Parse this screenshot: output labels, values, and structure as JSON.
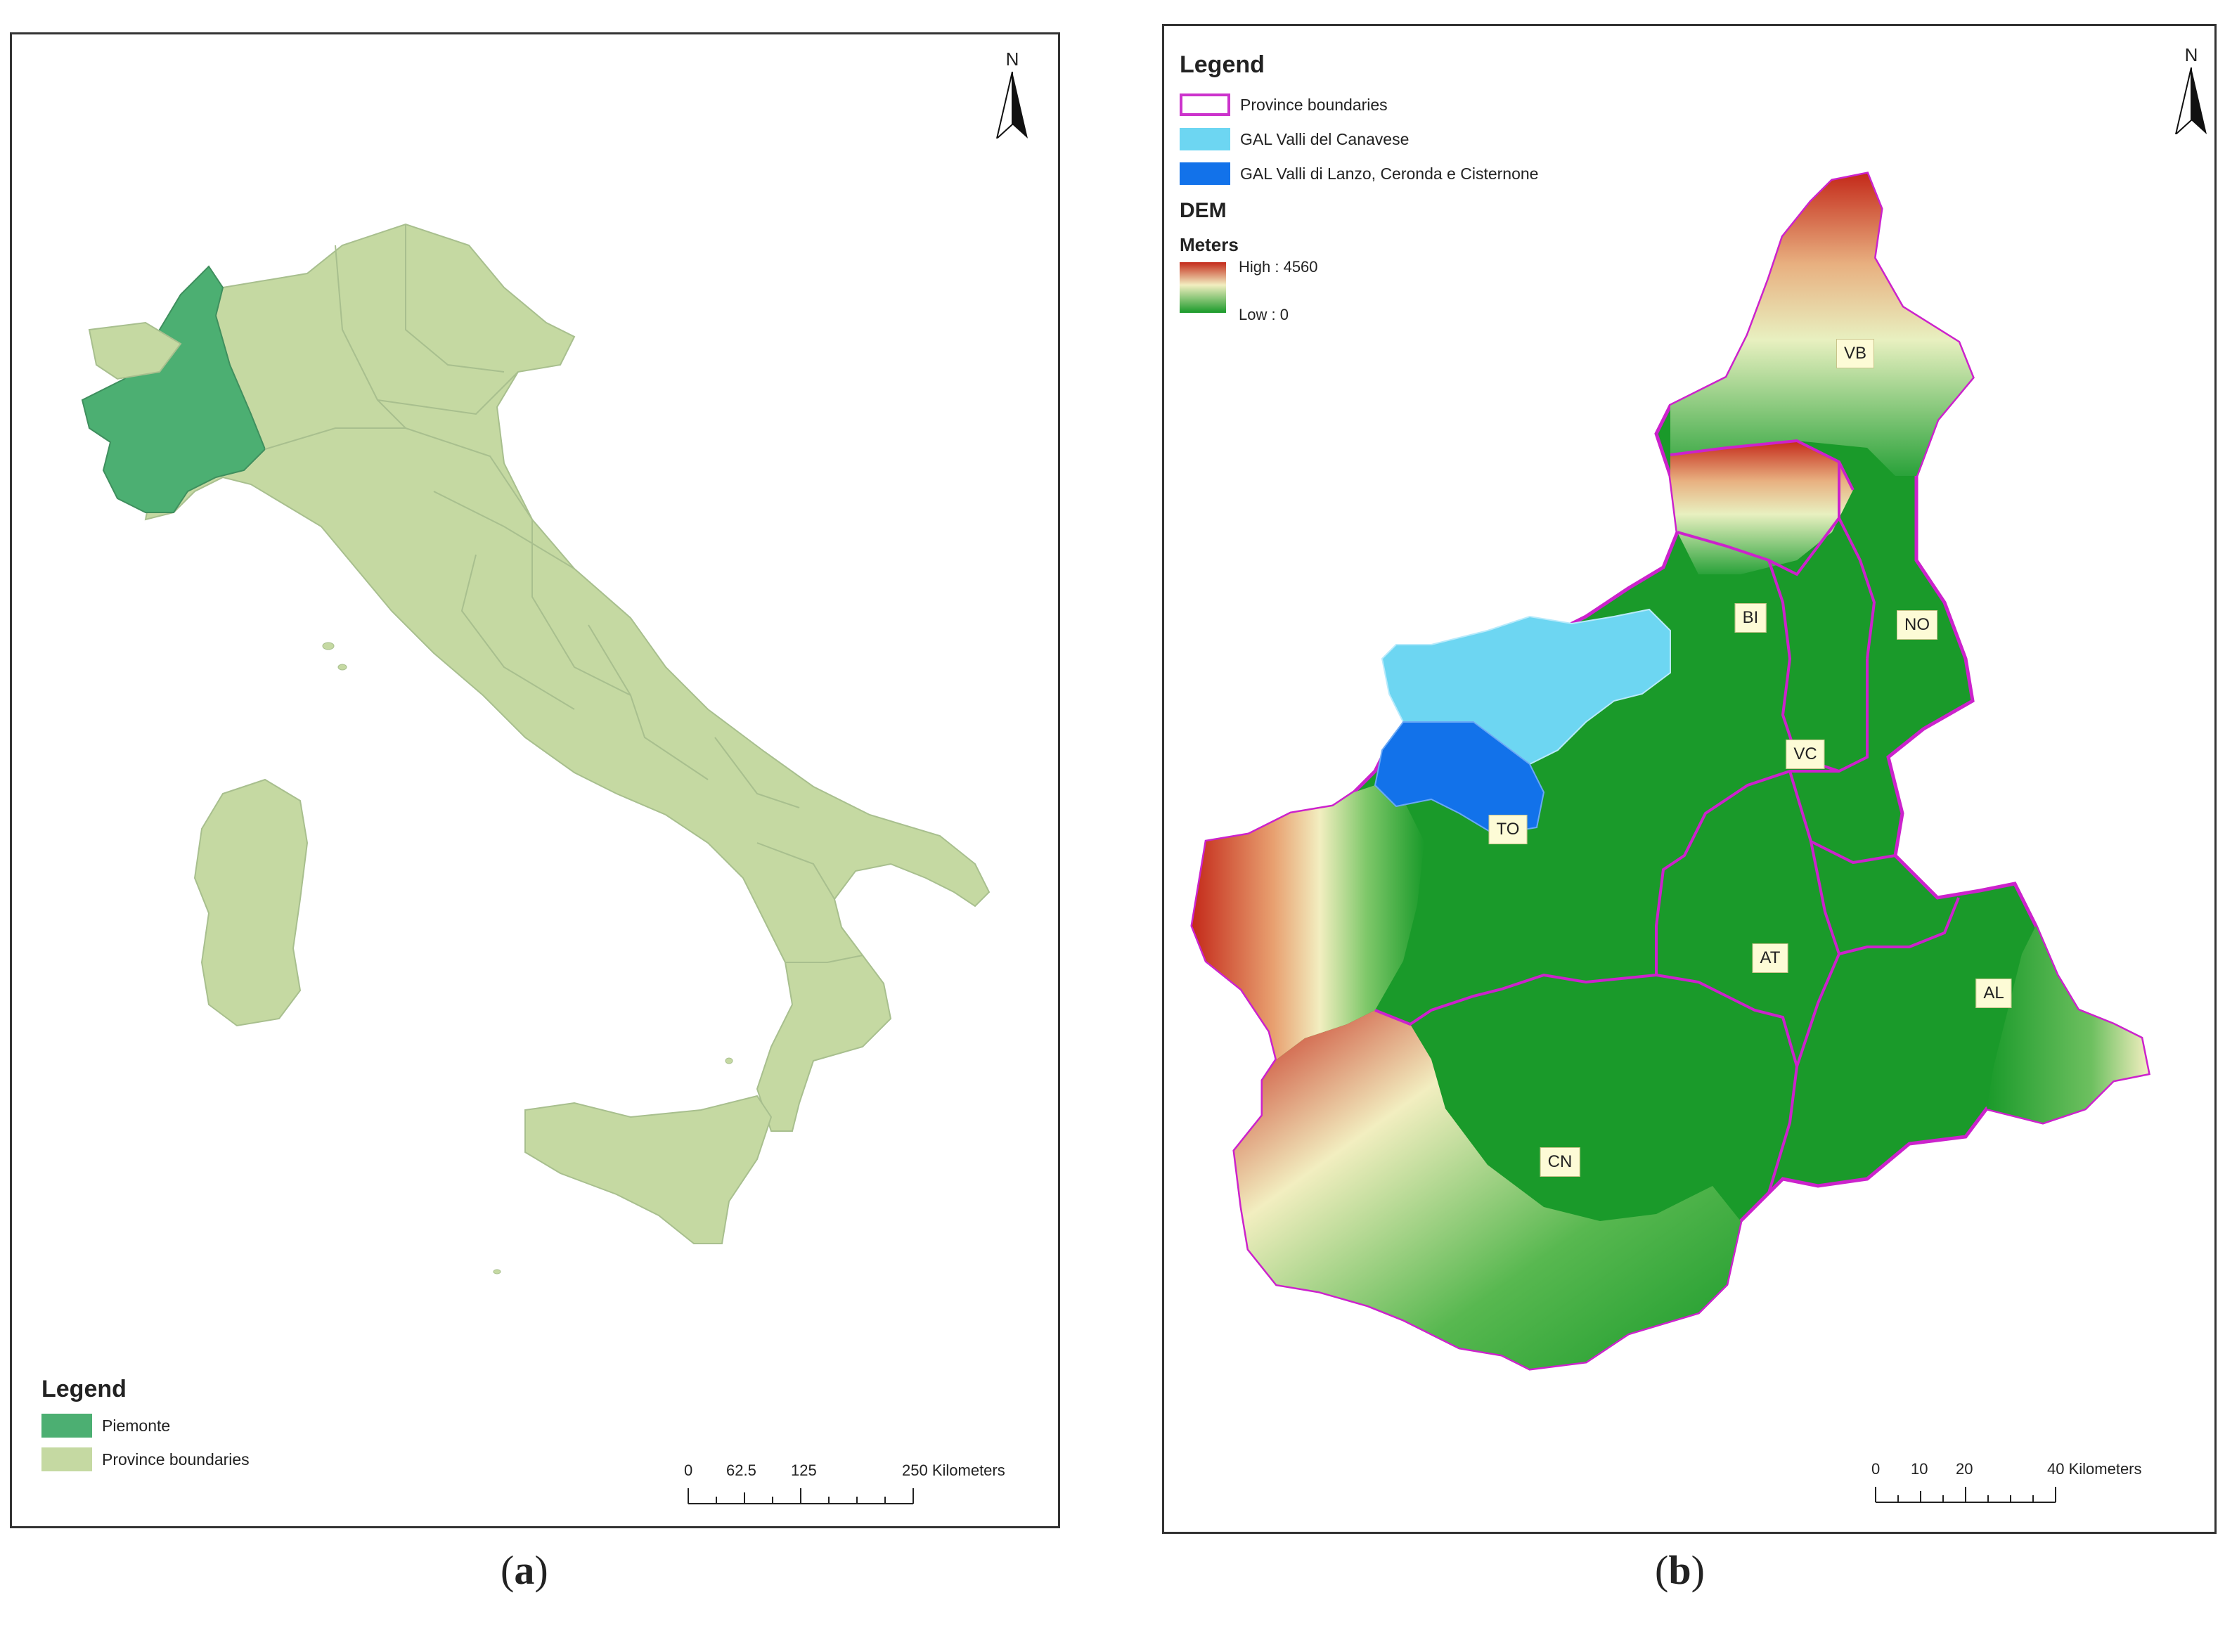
{
  "panel_a": {
    "caption_letter": "a",
    "north_label": "N",
    "legend": {
      "title": "Legend",
      "items": [
        {
          "label": "Piemonte",
          "color": "#4caf72"
        },
        {
          "label": "Province boundaries",
          "color": "#c5d9a2"
        }
      ]
    },
    "scale": {
      "ticks": [
        "0",
        "62.5",
        "125",
        "250 Kilometers"
      ]
    },
    "colors": {
      "italy": "#c5d9a2",
      "piemonte": "#4caf72",
      "boundary": "#9fb58a"
    }
  },
  "panel_b": {
    "caption_letter": "b",
    "north_label": "N",
    "legend": {
      "title": "Legend",
      "items": [
        {
          "label": "Province boundaries",
          "color": "#cc33cc",
          "kind": "outline"
        },
        {
          "label": "GAL Valli del Canavese",
          "color": "#6dd6f2",
          "kind": "fill"
        },
        {
          "label": "GAL Valli di Lanzo, Ceronda e Cisternone",
          "color": "#1272ea",
          "kind": "fill"
        }
      ],
      "dem_title": "DEM",
      "dem_units": "Meters",
      "dem_high": "High : 4560",
      "dem_low": "Low : 0"
    },
    "provinces": [
      {
        "code": "VB"
      },
      {
        "code": "BI"
      },
      {
        "code": "NO"
      },
      {
        "code": "VC"
      },
      {
        "code": "TO"
      },
      {
        "code": "AT"
      },
      {
        "code": "AL"
      },
      {
        "code": "CN"
      }
    ],
    "scale": {
      "ticks": [
        "0",
        "10",
        "20",
        "40 Kilometers"
      ]
    },
    "colors": {
      "boundary": "#cc22cc",
      "dem_low": "#1a9a2a",
      "dem_mid": "#f2eec0",
      "dem_high": "#c42a1a"
    }
  }
}
